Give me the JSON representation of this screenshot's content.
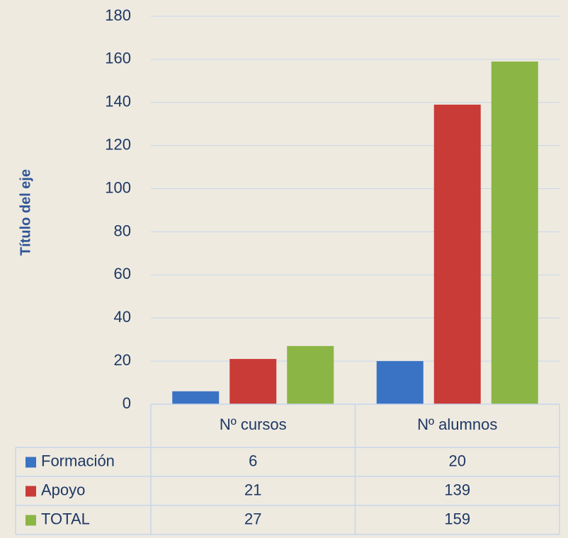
{
  "chart_data": {
    "type": "bar",
    "y_axis_title": "Título del eje",
    "categories": [
      "Nº cursos",
      "Nº alumnos"
    ],
    "series": [
      {
        "name": "Formación",
        "color": "#3b73c4",
        "values": [
          6,
          20
        ]
      },
      {
        "name": "Apoyo",
        "color": "#c93b37",
        "values": [
          21,
          139
        ]
      },
      {
        "name": "TOTAL",
        "color": "#8bb545",
        "values": [
          27,
          159
        ]
      }
    ],
    "ylim": [
      0,
      180
    ],
    "yticks": [
      0,
      20,
      40,
      60,
      80,
      100,
      120,
      140,
      160,
      180
    ],
    "grid": true,
    "data_table": true
  }
}
